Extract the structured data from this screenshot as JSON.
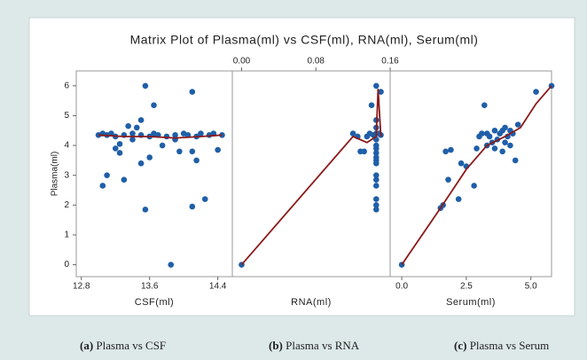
{
  "title": "Matrix Plot of Plasma(ml) vs CSF(ml), RNA(ml), Serum(ml)",
  "ylabel": "Plasma(ml)",
  "captions": [
    {
      "label": "(a)",
      "text": "Plasma vs CSF"
    },
    {
      "label": "(b)",
      "text": "Plasma vs RNA"
    },
    {
      "label": "(c)",
      "text": "Plasma vs Serum"
    }
  ],
  "chart_data": [
    {
      "type": "scatter",
      "xlabel": "CSF(ml)",
      "xlim": [
        12.74,
        14.57
      ],
      "xticks": [
        12.8,
        13.6,
        14.4
      ],
      "xtick_position": "bottom",
      "ylim": [
        -0.4,
        6.5
      ],
      "yticks": [
        0,
        1,
        2,
        3,
        4,
        5,
        6
      ],
      "series": [
        {
          "color": "#1f5fa8",
          "x": [
            13.55,
            14.1,
            13.65,
            13.5,
            13.05,
            13.1,
            13.2,
            13.25,
            13.3,
            13.55,
            13.85,
            14.1,
            14.1,
            14.15,
            14.25,
            14.4,
            13.25,
            13.4,
            13.6,
            13.5,
            13.75,
            13.9,
            13.95,
            13.45,
            13.35,
            13.0,
            13.05,
            13.1,
            13.15,
            13.2,
            13.3,
            13.4,
            13.5,
            13.6,
            13.65,
            13.7,
            13.8,
            13.9,
            14.0,
            14.05,
            14.15,
            14.2,
            14.3,
            14.35,
            14.45
          ],
          "values": [
            6.0,
            5.8,
            5.35,
            4.85,
            2.65,
            3.0,
            3.9,
            3.75,
            2.85,
            1.85,
            0.0,
            1.95,
            3.8,
            3.5,
            2.2,
            3.85,
            4.05,
            4.2,
            3.6,
            3.4,
            4.0,
            4.2,
            3.8,
            4.6,
            4.65,
            4.35,
            4.4,
            4.35,
            4.4,
            4.3,
            4.35,
            4.4,
            4.35,
            4.3,
            4.4,
            4.35,
            4.3,
            4.35,
            4.4,
            4.35,
            4.3,
            4.4,
            4.35,
            4.4,
            4.35
          ]
        }
      ],
      "lines": [
        {
          "color": "#8b1a1a",
          "x": [
            13.0,
            13.3,
            13.6,
            13.9,
            14.2,
            14.45
          ],
          "values": [
            4.35,
            4.3,
            4.3,
            4.25,
            4.3,
            4.35
          ]
        }
      ]
    },
    {
      "type": "scatter",
      "xlabel": "RNA(ml)",
      "xlim": [
        -0.01,
        0.16
      ],
      "xticks": [
        {
          "value": 0,
          "label": "0.00"
        },
        {
          "value": 0.08,
          "label": "0.08"
        },
        {
          "value": 0.16,
          "label": "0.16"
        }
      ],
      "xtick_position": "top",
      "ylim": [
        -0.4,
        6.5
      ],
      "series": [
        {
          "color": "#1f5fa8",
          "x": [
            0,
            0.12,
            0.125,
            0.128,
            0.132,
            0.135,
            0.14,
            0.145,
            0.145,
            0.145,
            0.145,
            0.145,
            0.145,
            0.145,
            0.145,
            0.145,
            0.145,
            0.145,
            0.145,
            0.145,
            0.145,
            0.145,
            0.145,
            0.145,
            0.15,
            0.15,
            0.148,
            0.142,
            0.138
          ],
          "values": [
            0,
            4.4,
            4.3,
            3.8,
            3.8,
            4.3,
            5.35,
            6.0,
            1.85,
            2.0,
            2.2,
            2.65,
            2.85,
            3.0,
            3.4,
            3.5,
            3.6,
            3.75,
            3.9,
            4.0,
            4.2,
            4.6,
            4.85,
            4.4,
            5.8,
            4.35,
            4.4,
            4.35,
            4.4
          ]
        }
      ],
      "lines": [
        {
          "color": "#8b1a1a",
          "x": [
            0,
            0.12,
            0.135,
            0.145,
            0.147,
            0.15
          ],
          "values": [
            0,
            4.3,
            4.1,
            4.3,
            5.9,
            4.3
          ]
        }
      ]
    },
    {
      "type": "scatter",
      "xlabel": "Serum(ml)",
      "xlim": [
        -0.45,
        5.8
      ],
      "xticks": [
        {
          "value": 0,
          "label": "0.0"
        },
        2.5,
        {
          "value": 5,
          "label": "5.0"
        }
      ],
      "xtick_position": "bottom",
      "ylim": [
        -0.4,
        6.5
      ],
      "series": [
        {
          "color": "#1f5fa8",
          "x": [
            0,
            1.5,
            1.6,
            1.7,
            1.9,
            1.8,
            2.2,
            2.3,
            2.5,
            2.8,
            2.9,
            3.0,
            3.2,
            3.1,
            3.3,
            3.4,
            3.5,
            3.6,
            3.7,
            3.8,
            3.9,
            4.0,
            4.1,
            4.2,
            4.3,
            4.4,
            4.5,
            3.6,
            4.0,
            5.2,
            5.8,
            3.9,
            4.2,
            3.3
          ],
          "values": [
            0,
            1.9,
            2.0,
            3.8,
            3.85,
            2.85,
            2.2,
            3.4,
            3.3,
            2.65,
            3.9,
            4.3,
            5.35,
            4.4,
            4.0,
            4.3,
            4.1,
            4.5,
            4.2,
            4.4,
            3.8,
            4.6,
            4.3,
            4.5,
            4.4,
            3.5,
            4.7,
            3.9,
            4.1,
            5.8,
            6.0,
            4.5,
            4.0,
            4.4
          ]
        }
      ],
      "lines": [
        {
          "color": "#8b1a1a",
          "x": [
            0,
            1.5,
            2.5,
            3.3,
            4.0,
            4.6,
            5.2,
            5.8
          ],
          "values": [
            0,
            1.9,
            3.2,
            4.0,
            4.3,
            4.6,
            5.4,
            6.0
          ]
        }
      ]
    }
  ]
}
